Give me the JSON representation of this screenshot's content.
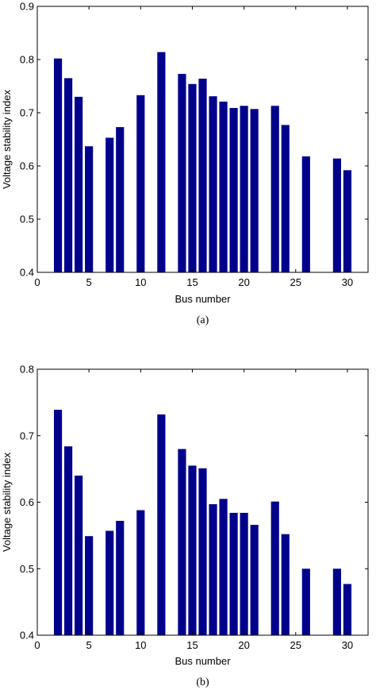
{
  "chart_data": [
    {
      "type": "bar",
      "caption": "(a)",
      "xlabel": "Bus number",
      "ylabel": "Voltage stability index",
      "xlim": [
        0,
        32
      ],
      "ylim": [
        0.4,
        0.9
      ],
      "xticks": [
        "0",
        "5",
        "10",
        "15",
        "20",
        "25",
        "30"
      ],
      "yticks": [
        "0.4",
        "0.5",
        "0.6",
        "0.7",
        "0.8",
        "0.9"
      ],
      "bar_color": "#00008b",
      "grid": false,
      "x": [
        2,
        3,
        4,
        5,
        7,
        8,
        10,
        12,
        14,
        15,
        16,
        17,
        18,
        19,
        20,
        21,
        23,
        24,
        26,
        29,
        30
      ],
      "values": [
        0.802,
        0.765,
        0.73,
        0.637,
        0.653,
        0.673,
        0.733,
        0.814,
        0.773,
        0.754,
        0.764,
        0.731,
        0.721,
        0.709,
        0.713,
        0.707,
        0.713,
        0.677,
        0.618,
        0.614,
        0.592
      ]
    },
    {
      "type": "bar",
      "caption": "(b)",
      "xlabel": "Bus number",
      "ylabel": "Voltage stability index",
      "xlim": [
        0,
        32
      ],
      "ylim": [
        0.4,
        0.8
      ],
      "xticks": [
        "0",
        "5",
        "10",
        "15",
        "20",
        "25",
        "30"
      ],
      "yticks": [
        "0.4",
        "0.5",
        "0.6",
        "0.7",
        "0.8"
      ],
      "bar_color": "#00008b",
      "grid": false,
      "x": [
        2,
        3,
        4,
        5,
        7,
        8,
        10,
        12,
        14,
        15,
        16,
        17,
        18,
        19,
        20,
        21,
        23,
        24,
        26,
        29,
        30
      ],
      "values": [
        0.739,
        0.684,
        0.64,
        0.549,
        0.557,
        0.572,
        0.588,
        0.732,
        0.68,
        0.655,
        0.651,
        0.597,
        0.605,
        0.584,
        0.584,
        0.566,
        0.601,
        0.552,
        0.5,
        0.5,
        0.477
      ]
    }
  ]
}
